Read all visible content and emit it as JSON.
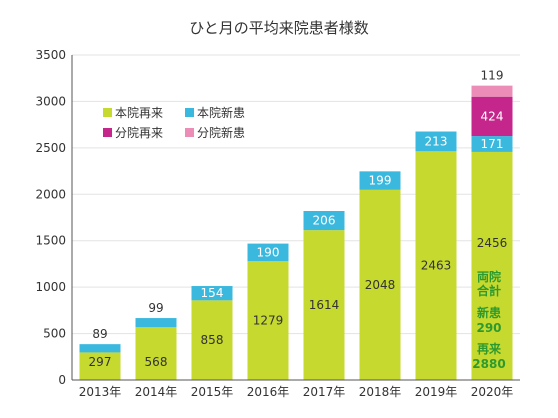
{
  "chart_data": {
    "type": "bar",
    "stacked": true,
    "title": "ひと月の平均来院患者様数",
    "categories": [
      "2013年",
      "2014年",
      "2015年",
      "2016年",
      "2017年",
      "2018年",
      "2019年",
      "2020年"
    ],
    "ylim": [
      0,
      3500
    ],
    "yticks": [
      0,
      500,
      1000,
      1500,
      2000,
      2500,
      3000,
      3500
    ],
    "grid": true,
    "legend_position": "top-left",
    "series": [
      {
        "name": "本院再来",
        "color": "#c6d92e",
        "values": [
          297,
          568,
          858,
          1279,
          1614,
          2048,
          2463,
          2456
        ]
      },
      {
        "name": "本院新患",
        "color": "#3bb8de",
        "values": [
          89,
          99,
          154,
          190,
          206,
          199,
          213,
          171
        ]
      },
      {
        "name": "分院再来",
        "color": "#c5268c",
        "values": [
          0,
          0,
          0,
          0,
          0,
          0,
          0,
          424
        ]
      },
      {
        "name": "分院新患",
        "color": "#ec8db8",
        "values": [
          0,
          0,
          0,
          0,
          0,
          0,
          0,
          119
        ]
      }
    ],
    "annotations": {
      "total_header": "両院",
      "total_header2": "合計",
      "new_label": "新患",
      "new_value": "290",
      "return_label": "再来",
      "return_value": "2880"
    }
  }
}
